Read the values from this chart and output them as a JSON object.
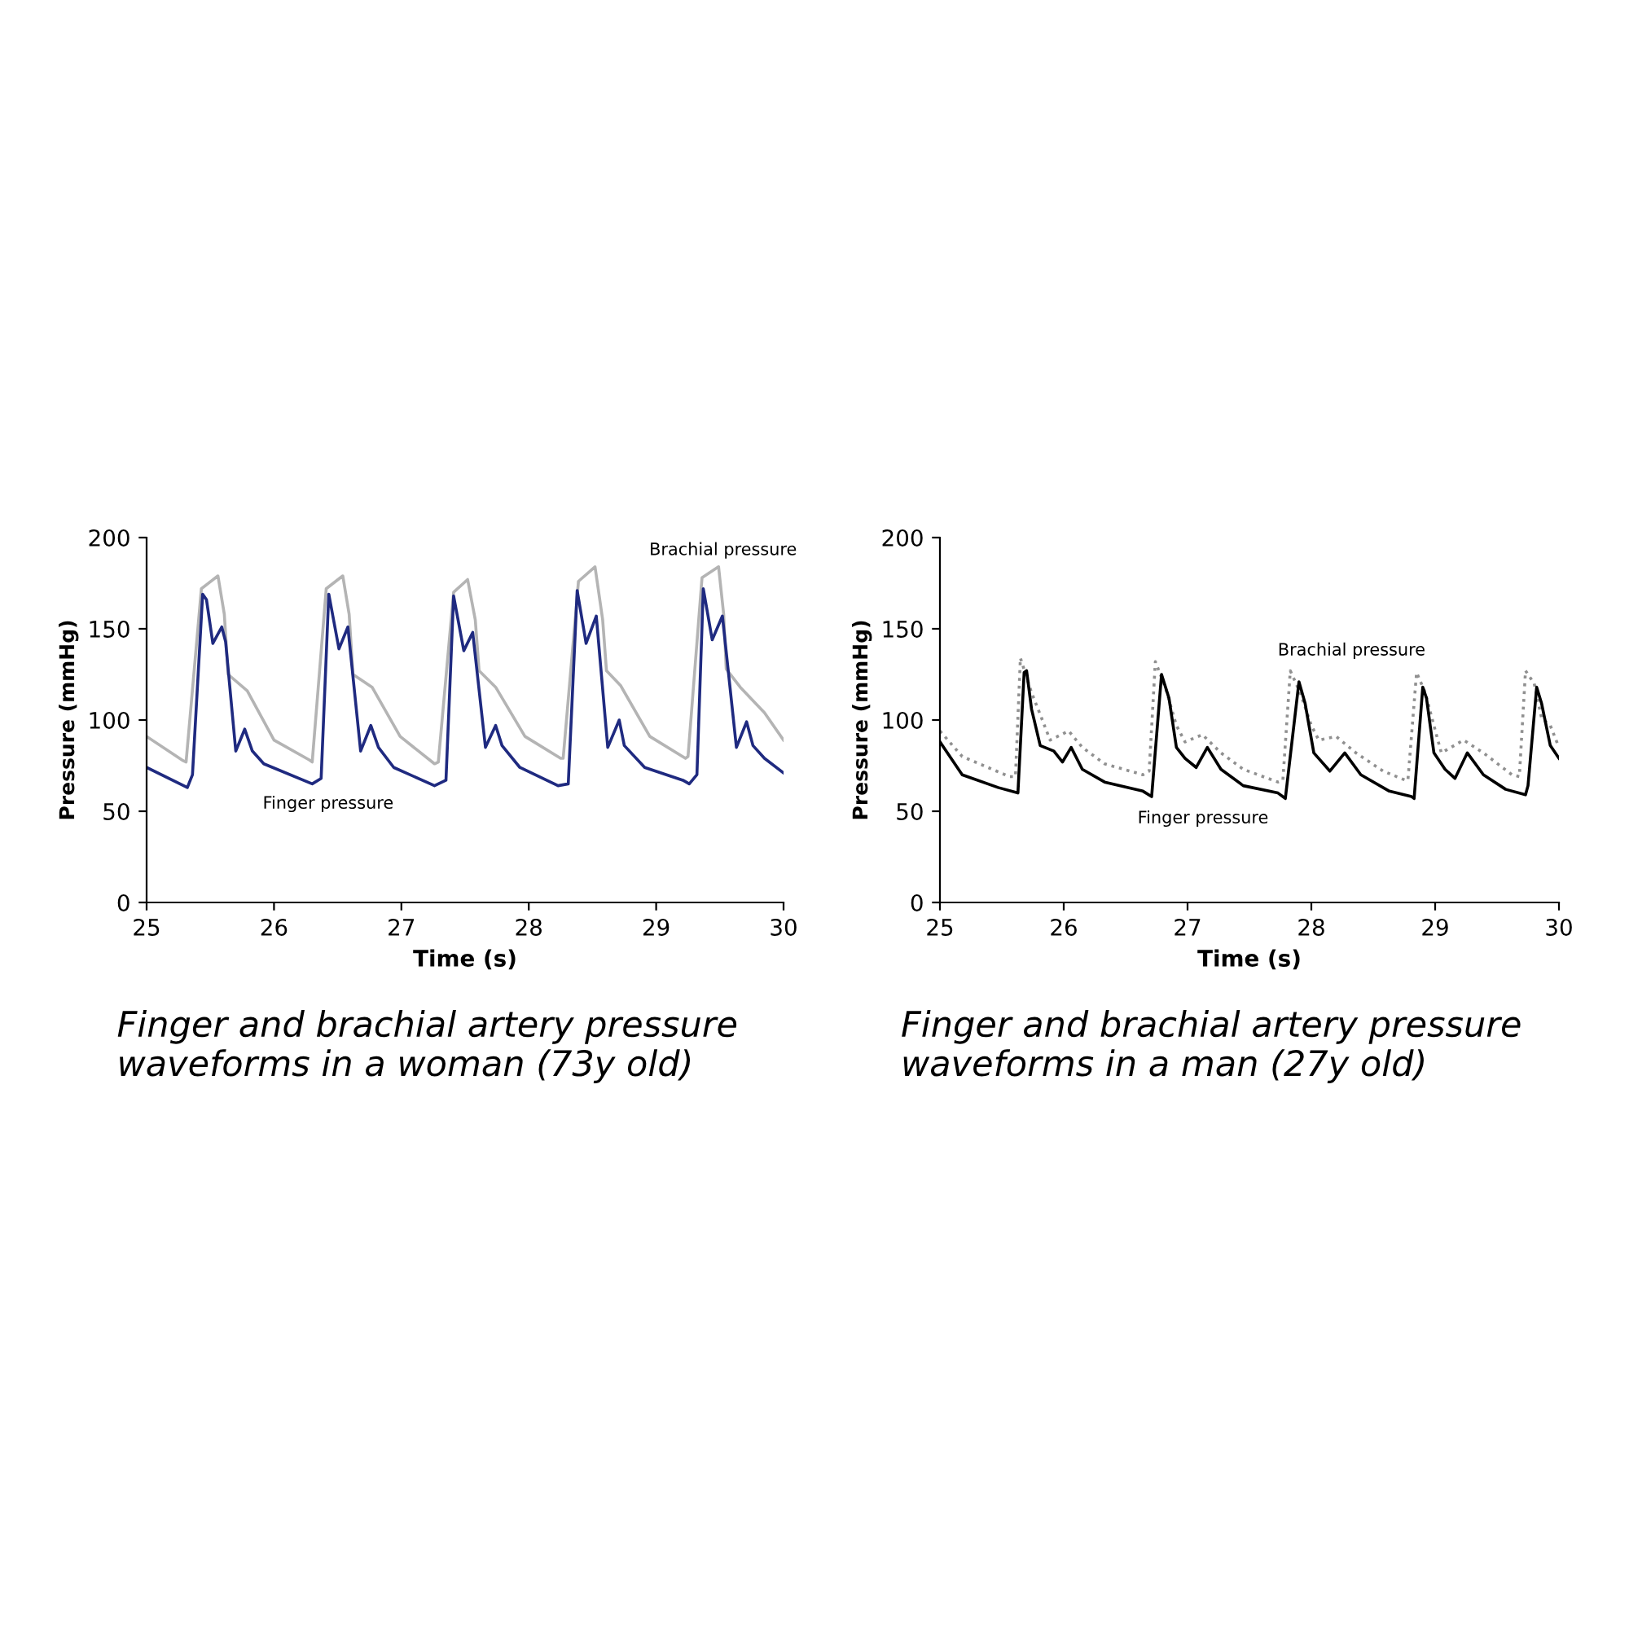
{
  "chart_data": [
    {
      "type": "line",
      "xlabel": "Time (s)",
      "ylabel": "Pressure (mmHg)",
      "xlim": [
        25,
        30
      ],
      "xticks": [
        25,
        26,
        27,
        28,
        29,
        30
      ],
      "ylim": [
        0,
        200
      ],
      "yticks": [
        0,
        50,
        100,
        150,
        200
      ],
      "grid": false,
      "legend": false,
      "series": [
        {
          "color": "#b4b4b4",
          "line_style": "solid",
          "x": [
            25.0,
            25.28,
            25.31,
            25.43,
            25.56,
            25.61,
            25.64,
            25.79,
            26.0,
            26.28,
            26.3,
            26.41,
            26.54,
            26.59,
            26.62,
            26.77,
            26.99,
            27.26,
            27.29,
            27.41,
            27.52,
            27.58,
            27.61,
            27.74,
            27.97,
            28.25,
            28.27,
            28.39,
            28.52,
            28.58,
            28.61,
            28.72,
            28.95,
            29.23,
            29.25,
            29.36,
            29.49,
            29.53,
            29.55,
            29.66,
            29.85,
            30.0
          ],
          "values": [
            91,
            78,
            77,
            172,
            179,
            158,
            125,
            116,
            89,
            78,
            77,
            172,
            179,
            158,
            125,
            118,
            91,
            76,
            77,
            170,
            177,
            155,
            127,
            118,
            91,
            79,
            79,
            176,
            184,
            155,
            127,
            119,
            91,
            79,
            80,
            178,
            184,
            158,
            128,
            118,
            104,
            89
          ]
        },
        {
          "color": "#1f2a80",
          "line_style": "solid",
          "x": [
            25.0,
            25.32,
            25.36,
            25.44,
            25.47,
            25.52,
            25.59,
            25.62,
            25.7,
            25.77,
            25.83,
            25.92,
            26.3,
            26.37,
            26.43,
            26.51,
            26.58,
            26.68,
            26.76,
            26.82,
            26.94,
            27.26,
            27.35,
            27.41,
            27.49,
            27.56,
            27.66,
            27.74,
            27.79,
            27.93,
            28.23,
            28.31,
            28.38,
            28.45,
            28.53,
            28.62,
            28.71,
            28.75,
            28.91,
            29.21,
            29.26,
            29.32,
            29.37,
            29.44,
            29.52,
            29.63,
            29.71,
            29.76,
            29.85,
            30.0
          ],
          "values": [
            74,
            63,
            70,
            169,
            166,
            142,
            151,
            143,
            83,
            95,
            83,
            76,
            65,
            68,
            169,
            139,
            151,
            83,
            97,
            85,
            74,
            64,
            67,
            168,
            138,
            148,
            85,
            97,
            86,
            74,
            64,
            65,
            171,
            142,
            157,
            85,
            100,
            86,
            74,
            67,
            65,
            70,
            172,
            144,
            157,
            85,
            99,
            86,
            79,
            71
          ]
        }
      ],
      "annotations": [
        "Brachial pressure",
        "Finger pressure",
        "Finger and brachial artery pressure waveforms in a woman (73y old)"
      ]
    },
    {
      "type": "line",
      "xlabel": "Time (s)",
      "ylabel": "Pressure (mmHg)",
      "xlim": [
        25,
        30
      ],
      "xticks": [
        25,
        26,
        27,
        28,
        29,
        30
      ],
      "ylim": [
        0,
        200
      ],
      "yticks": [
        0,
        50,
        100,
        150,
        200
      ],
      "grid": false,
      "legend": false,
      "series": [
        {
          "color": "#909090",
          "line_style": "dotted",
          "x": [
            25.0,
            25.18,
            25.56,
            25.61,
            25.65,
            25.74,
            25.81,
            25.89,
            26.04,
            26.15,
            26.33,
            26.64,
            26.69,
            26.74,
            26.82,
            26.91,
            26.98,
            27.12,
            27.27,
            27.45,
            27.73,
            27.77,
            27.83,
            27.91,
            28.0,
            28.06,
            28.2,
            28.36,
            28.58,
            28.76,
            28.78,
            28.85,
            28.92,
            28.99,
            29.05,
            29.23,
            29.39,
            29.62,
            29.68,
            29.73,
            29.8,
            29.86,
            29.93,
            30.0
          ],
          "values": [
            94,
            80,
            69,
            69,
            134,
            115,
            103,
            89,
            94,
            85,
            76,
            70,
            72,
            132,
            118,
            97,
            88,
            92,
            82,
            73,
            66,
            67,
            127,
            115,
            97,
            89,
            91,
            82,
            72,
            67,
            67,
            126,
            115,
            97,
            82,
            89,
            82,
            70,
            69,
            127,
            120,
            101,
            97,
            85
          ]
        },
        {
          "color": "#000000",
          "line_style": "solid",
          "x": [
            25.0,
            25.18,
            25.47,
            25.63,
            25.68,
            25.7,
            25.74,
            25.81,
            25.92,
            25.99,
            26.06,
            26.15,
            26.33,
            26.64,
            26.71,
            26.79,
            26.85,
            26.91,
            26.98,
            27.07,
            27.16,
            27.27,
            27.45,
            27.73,
            27.79,
            27.9,
            27.95,
            28.02,
            28.15,
            28.27,
            28.4,
            28.63,
            28.81,
            28.83,
            28.9,
            28.93,
            28.99,
            29.08,
            29.16,
            29.26,
            29.39,
            29.57,
            29.73,
            29.75,
            29.82,
            29.86,
            29.93,
            30.0
          ],
          "values": [
            88,
            70,
            63,
            60,
            126,
            127,
            106,
            86,
            83,
            77,
            85,
            73,
            66,
            61,
            58,
            125,
            112,
            85,
            79,
            74,
            85,
            73,
            64,
            60,
            57,
            121,
            109,
            82,
            72,
            82,
            70,
            61,
            58,
            57,
            118,
            112,
            82,
            73,
            68,
            82,
            70,
            62,
            59,
            64,
            118,
            109,
            86,
            79
          ]
        }
      ],
      "annotations": [
        "Brachial pressure",
        "Finger pressure",
        "Finger and brachial artery pressure waveforms in a man (27y old)"
      ]
    }
  ]
}
